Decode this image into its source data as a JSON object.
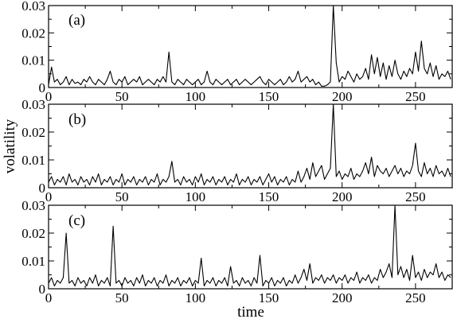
{
  "chart_data": [
    {
      "type": "line",
      "panel_label": "(a)",
      "xlim": [
        0,
        275
      ],
      "ylim": [
        0,
        0.03
      ],
      "x_ticks": [
        "0",
        "50",
        "100",
        "150",
        "200",
        "250"
      ],
      "y_ticks": [
        "0",
        "0.01",
        "0.02",
        "0.03"
      ],
      "series": [
        {
          "color": "#000000",
          "x": [
            0,
            2,
            4,
            6,
            8,
            10,
            12,
            14,
            16,
            18,
            20,
            22,
            24,
            26,
            28,
            30,
            32,
            34,
            36,
            38,
            40,
            42,
            44,
            46,
            48,
            50,
            52,
            54,
            56,
            58,
            60,
            62,
            64,
            66,
            68,
            70,
            72,
            74,
            76,
            78,
            80,
            82,
            84,
            86,
            88,
            90,
            92,
            94,
            96,
            98,
            100,
            102,
            104,
            106,
            108,
            110,
            112,
            114,
            116,
            118,
            120,
            122,
            124,
            126,
            128,
            130,
            132,
            134,
            136,
            138,
            140,
            142,
            144,
            146,
            148,
            150,
            152,
            154,
            156,
            158,
            160,
            162,
            164,
            166,
            168,
            170,
            172,
            174,
            176,
            178,
            180,
            182,
            184,
            186,
            188,
            190,
            192,
            194,
            196,
            198,
            200,
            202,
            204,
            206,
            208,
            210,
            212,
            214,
            216,
            218,
            220,
            222,
            224,
            226,
            228,
            230,
            232,
            234,
            236,
            238,
            240,
            242,
            244,
            246,
            248,
            250,
            252,
            254,
            256,
            258,
            260,
            262,
            264,
            266,
            268,
            270,
            272,
            274
          ],
          "y": [
            0.001,
            0.0075,
            0.002,
            0.003,
            0.001,
            0.002,
            0.004,
            0.001,
            0.003,
            0.0015,
            0.002,
            0.001,
            0.003,
            0.002,
            0.004,
            0.002,
            0.001,
            0.003,
            0.002,
            0.001,
            0.003,
            0.006,
            0.002,
            0.001,
            0.003,
            0.002,
            0.004,
            0.001,
            0.002,
            0.003,
            0.002,
            0.004,
            0.001,
            0.002,
            0.003,
            0.002,
            0.001,
            0.003,
            0.002,
            0.004,
            0.002,
            0.013,
            0.002,
            0.001,
            0.003,
            0.002,
            0.001,
            0.003,
            0.002,
            0.001,
            0.002,
            0.003,
            0.001,
            0.002,
            0.006,
            0.002,
            0.001,
            0.003,
            0.002,
            0.001,
            0.002,
            0.003,
            0.001,
            0.002,
            0.003,
            0.001,
            0.002,
            0.003,
            0.002,
            0.001,
            0.002,
            0.003,
            0.004,
            0.002,
            0.001,
            0.003,
            0.002,
            0.001,
            0.002,
            0.003,
            0.001,
            0.002,
            0.004,
            0.002,
            0.003,
            0.006,
            0.002,
            0.003,
            0.004,
            0.002,
            0.003,
            0.001,
            0.002,
            0.0005,
            0.0005,
            0.001,
            0.002,
            0.03,
            0.009,
            0.002,
            0.004,
            0.003,
            0.006,
            0.004,
            0.002,
            0.005,
            0.003,
            0.004,
            0.007,
            0.003,
            0.012,
            0.005,
            0.011,
            0.004,
            0.009,
            0.003,
            0.008,
            0.004,
            0.01,
            0.005,
            0.003,
            0.006,
            0.004,
            0.007,
            0.005,
            0.013,
            0.006,
            0.017,
            0.007,
            0.005,
            0.009,
            0.004,
            0.008,
            0.003,
            0.005,
            0.004,
            0.006,
            0.003
          ]
        }
      ]
    },
    {
      "type": "line",
      "panel_label": "(b)",
      "xlim": [
        0,
        275
      ],
      "ylim": [
        0,
        0.03
      ],
      "x_ticks": [
        "0",
        "50",
        "100",
        "150",
        "200",
        "250"
      ],
      "y_ticks": [
        "0",
        "0.01",
        "0.02",
        "0.03"
      ],
      "series": [
        {
          "color": "#000000",
          "x": [
            0,
            2,
            4,
            6,
            8,
            10,
            12,
            14,
            16,
            18,
            20,
            22,
            24,
            26,
            28,
            30,
            32,
            34,
            36,
            38,
            40,
            42,
            44,
            46,
            48,
            50,
            52,
            54,
            56,
            58,
            60,
            62,
            64,
            66,
            68,
            70,
            72,
            74,
            76,
            78,
            80,
            82,
            84,
            86,
            88,
            90,
            92,
            94,
            96,
            98,
            100,
            102,
            104,
            106,
            108,
            110,
            112,
            114,
            116,
            118,
            120,
            122,
            124,
            126,
            128,
            130,
            132,
            134,
            136,
            138,
            140,
            142,
            144,
            146,
            148,
            150,
            152,
            154,
            156,
            158,
            160,
            162,
            164,
            166,
            168,
            170,
            172,
            174,
            176,
            178,
            180,
            182,
            184,
            186,
            188,
            190,
            192,
            194,
            196,
            198,
            200,
            202,
            204,
            206,
            208,
            210,
            212,
            214,
            216,
            218,
            220,
            222,
            224,
            226,
            228,
            230,
            232,
            234,
            236,
            238,
            240,
            242,
            244,
            246,
            248,
            250,
            252,
            254,
            256,
            258,
            260,
            262,
            264,
            266,
            268,
            270,
            272,
            274
          ],
          "y": [
            0.002,
            0.004,
            0.001,
            0.003,
            0.002,
            0.004,
            0.001,
            0.005,
            0.002,
            0.003,
            0.001,
            0.004,
            0.002,
            0.003,
            0.001,
            0.004,
            0.002,
            0.005,
            0.001,
            0.003,
            0.002,
            0.004,
            0.001,
            0.003,
            0.002,
            0.005,
            0.001,
            0.003,
            0.002,
            0.004,
            0.001,
            0.003,
            0.002,
            0.004,
            0.001,
            0.003,
            0.002,
            0.005,
            0.001,
            0.003,
            0.002,
            0.004,
            0.0095,
            0.002,
            0.003,
            0.001,
            0.004,
            0.002,
            0.003,
            0.001,
            0.004,
            0.002,
            0.005,
            0.001,
            0.003,
            0.002,
            0.004,
            0.001,
            0.003,
            0.002,
            0.004,
            0.001,
            0.003,
            0.002,
            0.005,
            0.001,
            0.003,
            0.002,
            0.004,
            0.001,
            0.003,
            0.002,
            0.004,
            0.001,
            0.003,
            0.005,
            0.002,
            0.004,
            0.001,
            0.003,
            0.002,
            0.004,
            0.001,
            0.003,
            0.002,
            0.006,
            0.002,
            0.004,
            0.007,
            0.003,
            0.009,
            0.004,
            0.006,
            0.008,
            0.003,
            0.005,
            0.007,
            0.03,
            0.004,
            0.006,
            0.003,
            0.005,
            0.004,
            0.007,
            0.003,
            0.005,
            0.004,
            0.006,
            0.009,
            0.005,
            0.011,
            0.004,
            0.008,
            0.006,
            0.005,
            0.007,
            0.004,
            0.006,
            0.008,
            0.005,
            0.007,
            0.004,
            0.006,
            0.005,
            0.008,
            0.016,
            0.006,
            0.004,
            0.009,
            0.005,
            0.007,
            0.004,
            0.008,
            0.005,
            0.006,
            0.004,
            0.007,
            0.004
          ]
        }
      ]
    },
    {
      "type": "line",
      "panel_label": "(c)",
      "xlim": [
        0,
        275
      ],
      "ylim": [
        0,
        0.03
      ],
      "x_ticks": [
        "0",
        "50",
        "100",
        "150",
        "200",
        "250"
      ],
      "y_ticks": [
        "0",
        "0.01",
        "0.02",
        "0.03"
      ],
      "xlabel": "time",
      "series": [
        {
          "color": "#000000",
          "x": [
            0,
            2,
            4,
            6,
            8,
            10,
            12,
            14,
            16,
            18,
            20,
            22,
            24,
            26,
            28,
            30,
            32,
            34,
            36,
            38,
            40,
            42,
            44,
            46,
            48,
            50,
            52,
            54,
            56,
            58,
            60,
            62,
            64,
            66,
            68,
            70,
            72,
            74,
            76,
            78,
            80,
            82,
            84,
            86,
            88,
            90,
            92,
            94,
            96,
            98,
            100,
            102,
            104,
            106,
            108,
            110,
            112,
            114,
            116,
            118,
            120,
            122,
            124,
            126,
            128,
            130,
            132,
            134,
            136,
            138,
            140,
            142,
            144,
            146,
            148,
            150,
            152,
            154,
            156,
            158,
            160,
            162,
            164,
            166,
            168,
            170,
            172,
            174,
            176,
            178,
            180,
            182,
            184,
            186,
            188,
            190,
            192,
            194,
            196,
            198,
            200,
            202,
            204,
            206,
            208,
            210,
            212,
            214,
            216,
            218,
            220,
            222,
            224,
            226,
            228,
            230,
            232,
            234,
            236,
            238,
            240,
            242,
            244,
            246,
            248,
            250,
            252,
            254,
            256,
            258,
            260,
            262,
            264,
            266,
            268,
            270,
            272,
            274
          ],
          "y": [
            0.002,
            0.004,
            0.001,
            0.003,
            0.002,
            0.004,
            0.02,
            0.002,
            0.003,
            0.001,
            0.004,
            0.002,
            0.003,
            0.001,
            0.004,
            0.002,
            0.005,
            0.001,
            0.003,
            0.002,
            0.004,
            0.001,
            0.0225,
            0.002,
            0.003,
            0.001,
            0.004,
            0.002,
            0.003,
            0.001,
            0.004,
            0.002,
            0.005,
            0.001,
            0.003,
            0.002,
            0.004,
            0.001,
            0.003,
            0.002,
            0.005,
            0.001,
            0.003,
            0.002,
            0.004,
            0.001,
            0.003,
            0.002,
            0.004,
            0.001,
            0.003,
            0.002,
            0.011,
            0.001,
            0.003,
            0.002,
            0.004,
            0.001,
            0.003,
            0.002,
            0.004,
            0.001,
            0.008,
            0.002,
            0.003,
            0.001,
            0.004,
            0.002,
            0.003,
            0.001,
            0.004,
            0.002,
            0.012,
            0.001,
            0.003,
            0.002,
            0.004,
            0.001,
            0.003,
            0.002,
            0.004,
            0.001,
            0.003,
            0.002,
            0.005,
            0.002,
            0.004,
            0.007,
            0.003,
            0.009,
            0.002,
            0.004,
            0.003,
            0.005,
            0.002,
            0.004,
            0.003,
            0.005,
            0.002,
            0.004,
            0.003,
            0.005,
            0.002,
            0.004,
            0.003,
            0.006,
            0.002,
            0.004,
            0.003,
            0.005,
            0.002,
            0.004,
            0.003,
            0.007,
            0.004,
            0.006,
            0.009,
            0.004,
            0.03,
            0.005,
            0.008,
            0.004,
            0.007,
            0.003,
            0.012,
            0.004,
            0.006,
            0.003,
            0.007,
            0.004,
            0.006,
            0.005,
            0.009,
            0.004,
            0.006,
            0.003,
            0.005,
            0.004
          ]
        }
      ]
    }
  ],
  "y_axis_title": "volatility",
  "x_axis_title": "time"
}
